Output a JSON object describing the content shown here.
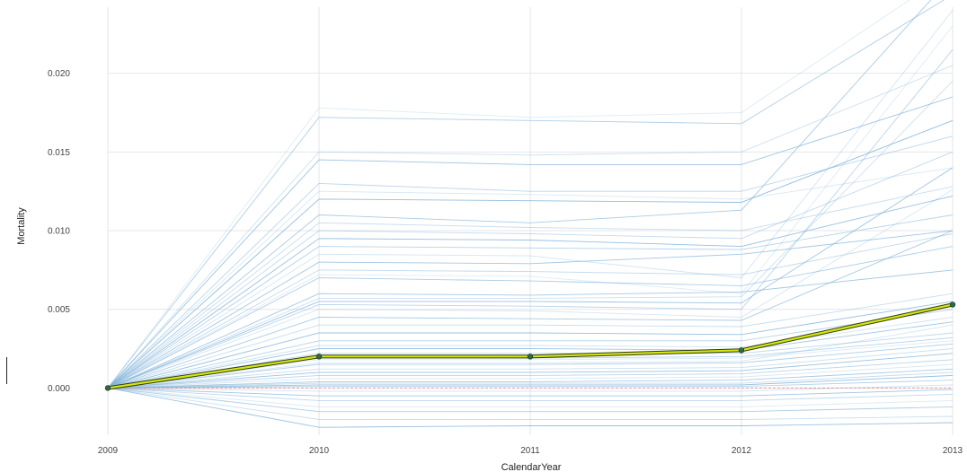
{
  "chart_data": {
    "type": "line",
    "xlabel": "CalendarYear",
    "ylabel": "Mortality",
    "x": [
      2009,
      2010,
      2011,
      2012,
      2013
    ],
    "xlim": [
      2009,
      2013
    ],
    "ylim": [
      -0.003,
      0.0242
    ],
    "yticks": [
      0.0,
      0.005,
      0.01,
      0.015,
      0.02
    ],
    "ytick_labels": [
      "0.000",
      "0.005",
      "0.010",
      "0.015",
      "0.020"
    ],
    "xtick_labels": [
      "2009",
      "2010",
      "2011",
      "2012",
      "2013"
    ],
    "grid": true,
    "legend": "none",
    "highlight_series": {
      "values": [
        0.0,
        0.002,
        0.002,
        0.0024,
        0.0053
      ],
      "color": "#d5e60e"
    },
    "baseline_series": {
      "values": [
        0.0,
        0.0,
        0.0,
        0.0,
        0.0
      ],
      "color": "#e59a9a"
    },
    "background_series_color": "#7fb2d9",
    "background_series": [
      {
        "values": [
          0,
          0.0178,
          0.0172,
          0.0175,
          0.0265
        ]
      },
      {
        "values": [
          0,
          0.0172,
          0.017,
          0.0168,
          0.025
        ]
      },
      {
        "values": [
          0,
          0.015,
          0.0148,
          0.015,
          0.0205
        ]
      },
      {
        "values": [
          0,
          0.0145,
          0.0142,
          0.0142,
          0.0185
        ]
      },
      {
        "values": [
          0,
          0.013,
          0.0125,
          0.0125,
          0.016
        ]
      },
      {
        "values": [
          0,
          0.0125,
          0.0123,
          0.012,
          0.014
        ]
      },
      {
        "values": [
          0,
          0.011,
          0.0105,
          0.0113,
          0.0262
        ]
      },
      {
        "values": [
          0,
          0.0105,
          0.0102,
          0.01,
          0.0128
        ]
      },
      {
        "values": [
          0,
          0.0095,
          0.0094,
          0.009,
          0.0122
        ]
      },
      {
        "values": [
          0,
          0.009,
          0.0089,
          0.0088,
          0.011
        ]
      },
      {
        "values": [
          0,
          0.0085,
          0.0084,
          0.007,
          0.024
        ]
      },
      {
        "values": [
          0,
          0.008,
          0.0079,
          0.0085,
          0.01
        ]
      },
      {
        "values": [
          0,
          0.0075,
          0.0074,
          0.0072,
          0.0098
        ]
      },
      {
        "values": [
          0,
          0.0072,
          0.0071,
          0.006,
          0.023
        ]
      },
      {
        "values": [
          0,
          0.007,
          0.0068,
          0.0065,
          0.009
        ]
      },
      {
        "values": [
          0,
          0.0057,
          0.0057,
          0.0058,
          0.0195
        ]
      },
      {
        "values": [
          0,
          0.0055,
          0.0055,
          0.0054,
          0.014
        ]
      },
      {
        "values": [
          0,
          0.0053,
          0.0052,
          0.005,
          0.0215
        ]
      },
      {
        "values": [
          0,
          0.005,
          0.0049,
          0.0045,
          0.0126
        ]
      },
      {
        "values": [
          0,
          0.0045,
          0.0044,
          0.0043,
          0.01
        ]
      },
      {
        "values": [
          0,
          0.004,
          0.004,
          0.0039,
          0.006
        ]
      },
      {
        "values": [
          0,
          0.0035,
          0.0035,
          0.0034,
          0.0055
        ]
      },
      {
        "values": [
          0,
          0.003,
          0.003,
          0.003,
          0.005
        ]
      },
      {
        "values": [
          0,
          0.0027,
          0.0027,
          0.0026,
          0.0045
        ]
      },
      {
        "values": [
          0,
          0.0025,
          0.0025,
          0.0024,
          0.0042
        ]
      },
      {
        "values": [
          0,
          0.0022,
          0.0022,
          0.0022,
          0.0035
        ]
      },
      {
        "values": [
          0,
          0.0018,
          0.0018,
          0.0019,
          0.003
        ]
      },
      {
        "values": [
          0,
          0.0015,
          0.0015,
          0.0016,
          0.0028
        ]
      },
      {
        "values": [
          0,
          0.0012,
          0.0012,
          0.0013,
          0.0025
        ]
      },
      {
        "values": [
          0,
          0.001,
          0.001,
          0.0011,
          0.0022
        ]
      },
      {
        "values": [
          0,
          0.0008,
          0.0008,
          0.0009,
          0.0018
        ]
      },
      {
        "values": [
          0,
          0.0006,
          0.0006,
          0.0007,
          0.0015
        ]
      },
      {
        "values": [
          0,
          0.0004,
          0.0004,
          0.0005,
          0.0012
        ]
      },
      {
        "values": [
          0,
          0.0003,
          0.0003,
          0.0003,
          0.001
        ]
      },
      {
        "values": [
          0,
          0.0002,
          0.0002,
          0.0002,
          0.0008
        ]
      },
      {
        "values": [
          0,
          0.0001,
          0.0001,
          0.0001,
          0.0005
        ]
      },
      {
        "values": [
          0,
          -0.0002,
          -0.0002,
          -0.0002,
          0.0002
        ]
      },
      {
        "values": [
          0,
          -0.0005,
          -0.0005,
          -0.0005,
          -0.0001
        ]
      },
      {
        "values": [
          0,
          -0.0008,
          -0.0008,
          -0.0008,
          -0.0004
        ]
      },
      {
        "values": [
          0,
          -0.0012,
          -0.0012,
          -0.0012,
          -0.0008
        ]
      },
      {
        "values": [
          0,
          -0.0015,
          -0.0015,
          -0.0015,
          -0.0012
        ]
      },
      {
        "values": [
          0,
          -0.002,
          -0.002,
          -0.002,
          -0.0018
        ]
      },
      {
        "values": [
          0,
          -0.0025,
          -0.0024,
          -0.0024,
          -0.0022
        ]
      },
      {
        "values": [
          0,
          0.002,
          0.0019,
          0.002,
          0.0032
        ]
      },
      {
        "values": [
          0,
          0.0016,
          0.0016,
          0.0017,
          0.004
        ]
      },
      {
        "values": [
          0,
          0.006,
          0.0059,
          0.0061,
          0.0075
        ]
      },
      {
        "values": [
          0,
          0.01,
          0.0098,
          0.0095,
          0.015
        ]
      },
      {
        "values": [
          0,
          0.012,
          0.0119,
          0.0118,
          0.017
        ]
      }
    ]
  }
}
